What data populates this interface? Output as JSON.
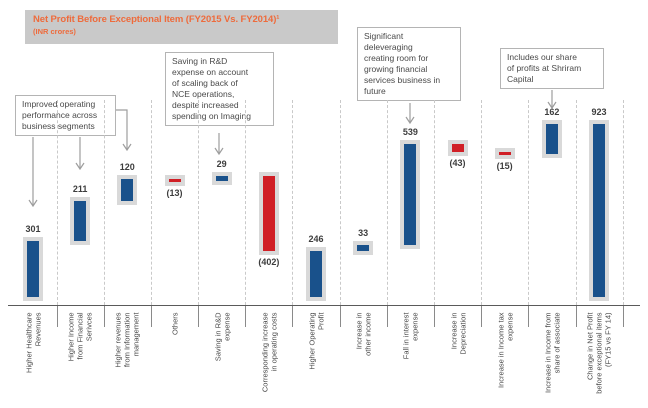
{
  "header": {
    "title": "Net Profit Before Exceptional Item (FY2015 Vs. FY2014)¹",
    "subtitle": "(INR crores)"
  },
  "chart_data": {
    "type": "bar",
    "subtype": "waterfall",
    "title": "Net Profit Before Exceptional Item (FY2015 Vs. FY2014)¹",
    "subtitle": "(INR crores)",
    "unit": "INR crores",
    "categories": [
      "Higher Healthcare\nRevenues",
      "Higher Income\nfrom Financial\nSerivces",
      "Higher revenues\nfrom Information\nmanagement",
      "Others",
      "Saving in R&D\nexpense",
      "Corresponding increase\nin operating costs",
      "Higher Operating\nProfit",
      "Increase in\nother income",
      "Fall in interest\nexpense",
      "Increase in\nDepreciation",
      "Increase in  Income tax\nexpense",
      "Increase in Income from\nshare of associate",
      "Change in Net Profit\nbefore exceptional items\n(FY15 vs FY 14)"
    ],
    "values": [
      301,
      211,
      120,
      -13,
      29,
      -402,
      246,
      33,
      539,
      -43,
      -15,
      162,
      923
    ],
    "kinds": [
      "delta",
      "delta",
      "delta",
      "delta",
      "delta",
      "delta",
      "total",
      "delta",
      "delta",
      "delta",
      "delta",
      "delta",
      "total"
    ],
    "value_labels": [
      "301",
      "211",
      "120",
      "(13)",
      "29",
      "(402)",
      "246",
      "33",
      "539",
      "(43)",
      "(15)",
      "162",
      "923"
    ],
    "ylim": [
      0,
      950
    ],
    "y_axis": "hidden",
    "grid": "vertical dashed column separators",
    "legend": "none",
    "colors": {
      "positive": "#19518b",
      "negative": "#d01f26",
      "backing": "#d9d9d9",
      "title": "#ee6b3c",
      "title_bg": "#c9c9c9"
    },
    "annotations": [
      "Improved operating\nperformance across\nbusiness segments",
      "Saving in R&D\nexpense on account\nof scaling back of\nNCE operations,\ndespite increased\nspending on Imaging",
      "Significant\ndeleveraging\ncreating room for\ngrowing financial\nservices business in\nfuture",
      "Includes our share\nof profits at Shriram\nCapital"
    ]
  }
}
